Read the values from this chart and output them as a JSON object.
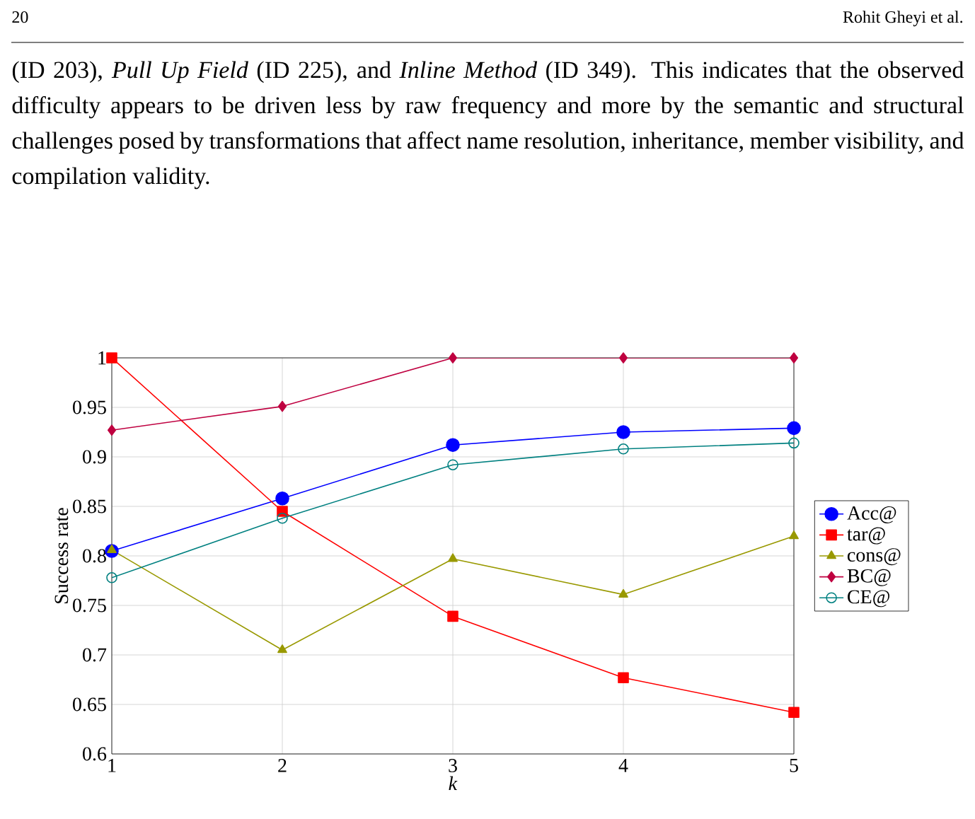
{
  "chart_data": {
    "type": "line",
    "xlabel": "*k*",
    "ylabel": "Success rate",
    "x": [
      1,
      2,
      3,
      4,
      5
    ],
    "series": [
      {
        "name": "Acc@",
        "color": "#0000ff",
        "marker": "circle",
        "values": [
          0.805,
          0.858,
          0.912,
          0.925,
          0.929
        ]
      },
      {
        "name": "tar@",
        "color": "#ff0000",
        "marker": "square",
        "values": [
          1.0,
          0.845,
          0.739,
          0.677,
          0.642
        ]
      },
      {
        "name": "cons@",
        "color": "#999900",
        "marker": "triangle",
        "values": [
          0.806,
          0.705,
          0.797,
          0.761,
          0.82
        ]
      },
      {
        "name": "BC@",
        "color": "#bf0040",
        "marker": "diamond",
        "values": [
          0.927,
          0.951,
          1.0,
          1.0,
          1.0
        ]
      },
      {
        "name": "CE@",
        "color": "#008080",
        "marker": "open circle",
        "values": [
          0.778,
          0.838,
          0.892,
          0.908,
          0.914
        ]
      }
    ],
    "xlim": [
      1,
      5
    ],
    "ylim": [
      0.6,
      1
    ],
    "xticks": [
      1,
      2,
      3,
      4,
      5
    ],
    "yticks": [
      0.6,
      0.65,
      0.7,
      0.75,
      0.8,
      0.85,
      0.9,
      0.95,
      1
    ],
    "grid": true,
    "legend": "right",
    "line_style": "solid",
    "annotations": [
      "20",
      "Rohit Gheyi et al.",
      "(ID 203), *Pull Up Field* (ID 225), and *Inline Method* (ID 349). This indicates that the observed difficulty appears to be driven less by raw frequency and more by the semantic and structural challenges posed by transformations that affect name resolution, inheritance, member visibility, and compilation validity."
    ]
  }
}
